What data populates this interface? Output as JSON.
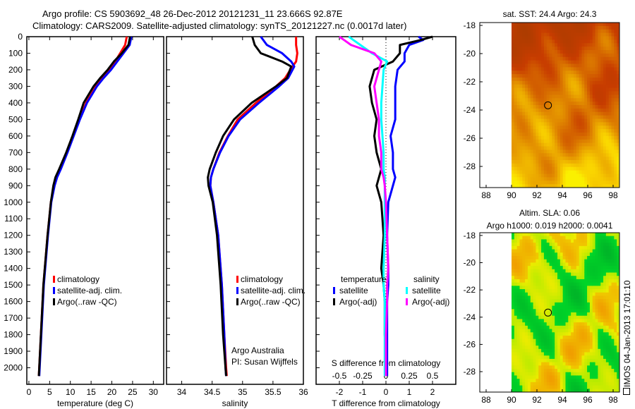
{
  "title": {
    "line1": "Argo profile: CS 5903692_48 26-Dec-2012 20121231_11 23.666S 92.87E",
    "line2": "Climatology: CARS2009. Satellite-adjusted climatology: synTS_20121227.nc (0.0017d later)"
  },
  "footer": {
    "credit1": "Argo Australia",
    "credit2": "PI: Susan Wijffels",
    "timestamp": "IMOS 04-Jan-2013 17:01:10"
  },
  "colors": {
    "climatology": "#ff0000",
    "satellite": "#0000ff",
    "argo": "#000000",
    "sal_satellite": "#00ffff",
    "sal_argo": "#ff00ff"
  },
  "chart_data": [
    {
      "type": "line",
      "name": "temperature",
      "xlabel": "temperature (deg C)",
      "xlim": [
        -0.5,
        32.5
      ],
      "ylim": [
        0,
        2100
      ],
      "y_inverted": true,
      "xticks": [
        0,
        5,
        10,
        15,
        20,
        25,
        30
      ],
      "yticks": [
        0,
        100,
        200,
        300,
        400,
        500,
        600,
        700,
        800,
        900,
        1000,
        1100,
        1200,
        1300,
        1400,
        1500,
        1600,
        1700,
        1800,
        1900,
        2000
      ],
      "legend": [
        "climatology",
        "satellite-adj. clim.",
        "Argo(..raw -QC)"
      ],
      "depth": [
        0,
        50,
        100,
        150,
        200,
        250,
        300,
        400,
        500,
        600,
        700,
        800,
        850,
        900,
        1000,
        1200,
        1500,
        1800,
        2000,
        2050
      ],
      "series": [
        {
          "name": "climatology",
          "color": "#ff0000",
          "values": [
            23.6,
            23.2,
            22.0,
            20.8,
            19.5,
            17.8,
            16.2,
            13.8,
            12.2,
            10.7,
            9.2,
            7.6,
            6.7,
            6.1,
            5.3,
            4.5,
            3.5,
            2.9,
            2.5,
            2.4
          ]
        },
        {
          "name": "satellite-adj. clim.",
          "color": "#0000ff",
          "values": [
            24.7,
            24.3,
            22.8,
            21.3,
            19.8,
            18.0,
            16.4,
            14.0,
            12.3,
            10.8,
            9.3,
            7.7,
            6.8,
            6.2,
            5.4,
            4.6,
            3.6,
            3.0,
            2.6,
            2.5
          ]
        },
        {
          "name": "Argo(..raw -QC)",
          "color": "#000000",
          "values": [
            24.4,
            24.0,
            22.4,
            20.5,
            19.0,
            17.2,
            15.6,
            13.2,
            11.9,
            10.5,
            9.0,
            7.3,
            6.4,
            5.9,
            5.3,
            4.5,
            3.5,
            2.9,
            2.5,
            2.4
          ]
        }
      ]
    },
    {
      "type": "line",
      "name": "salinity",
      "xlabel": "salinity",
      "xlim": [
        33.75,
        36.0
      ],
      "ylim": [
        0,
        2100
      ],
      "y_inverted": true,
      "xticks": [
        34,
        34.5,
        35,
        35.5,
        36
      ],
      "legend": [
        "climatology",
        "satellite-adj. clim.",
        "Argo(..raw -QC)"
      ],
      "depth": [
        0,
        50,
        100,
        150,
        180,
        250,
        300,
        400,
        500,
        600,
        700,
        800,
        850,
        900,
        1000,
        1200,
        1500,
        1800,
        2000,
        2050
      ],
      "series": [
        {
          "name": "climatology",
          "color": "#ff0000",
          "values": [
            35.88,
            35.88,
            35.9,
            35.88,
            35.82,
            35.7,
            35.55,
            35.22,
            34.92,
            34.76,
            34.62,
            34.52,
            34.48,
            34.47,
            34.52,
            34.6,
            34.66,
            34.7,
            34.73,
            34.74
          ]
        },
        {
          "name": "satellite-adj. clim.",
          "color": "#0000ff",
          "values": [
            35.3,
            35.4,
            35.65,
            35.8,
            35.85,
            35.75,
            35.6,
            35.27,
            34.96,
            34.77,
            34.63,
            34.52,
            34.48,
            34.47,
            34.52,
            34.6,
            34.66,
            34.7,
            34.72,
            34.73
          ]
        },
        {
          "name": "Argo(..raw -QC)",
          "color": "#000000",
          "values": [
            35.16,
            35.2,
            35.3,
            35.65,
            35.8,
            35.73,
            35.55,
            35.15,
            34.86,
            34.68,
            34.56,
            34.46,
            34.43,
            34.44,
            34.51,
            34.58,
            34.64,
            34.68,
            34.72,
            34.73
          ]
        }
      ]
    },
    {
      "type": "line",
      "name": "difference",
      "xlabel": "T difference from climatology",
      "x2label": "S difference from climatology",
      "xlim": [
        -3,
        3
      ],
      "ylim": [
        0,
        2100
      ],
      "y_inverted": true,
      "xticks": [
        -2,
        -1,
        0,
        1,
        2
      ],
      "x2ticks": [
        "-0.5",
        "-0.25",
        "0",
        "0.25",
        "0.5"
      ],
      "legend_temperature": {
        "title": "temperature",
        "items": [
          "satellite",
          "Argo(-adj)"
        ]
      },
      "legend_salinity": {
        "title": "salinity",
        "items": [
          "satellite",
          "Argo(-adj)"
        ]
      },
      "depth": [
        0,
        20,
        50,
        100,
        150,
        200,
        300,
        400,
        500,
        600,
        700,
        800,
        850,
        900,
        1000,
        1200,
        1400,
        1500,
        1600,
        1800,
        2000,
        2050
      ],
      "series": [
        {
          "name": "T satellite",
          "color": "#0000ff",
          "values": [
            1.4,
            1.6,
            1.0,
            0.8,
            0.8,
            0.5,
            0.4,
            0.4,
            0.4,
            0.2,
            0.3,
            0.3,
            0.4,
            0.3,
            0.1,
            0.05,
            0.1,
            0.1,
            0.05,
            0.05,
            0.05,
            0.05
          ]
        },
        {
          "name": "T Argo(-adj)",
          "color": "#000000",
          "values": [
            2.0,
            1.5,
            0.6,
            0.6,
            0.3,
            -0.5,
            -0.7,
            -0.6,
            -0.4,
            -0.5,
            -0.4,
            -0.2,
            -0.3,
            -0.4,
            -0.2,
            -0.1,
            -0.2,
            -0.1,
            -0.05,
            -0.05,
            0,
            0
          ]
        },
        {
          "name": "S satellite",
          "color": "#00ffff",
          "values": [
            -1.6,
            -1.4,
            -1.1,
            -0.6,
            0.05,
            -0.1,
            -0.15,
            -0.2,
            -0.2,
            -0.15,
            -0.1,
            -0.1,
            -0.05,
            -0.05,
            -0.05,
            -0.05,
            -0.1,
            -0.1,
            -0.05,
            -0.05,
            -0.05,
            -0.05
          ]
        },
        {
          "name": "S Argo(-adj)",
          "color": "#ff00ff",
          "values": [
            -2.0,
            -1.8,
            -1.5,
            -0.5,
            -0.2,
            -0.3,
            -0.5,
            -0.4,
            -0.3,
            -0.3,
            -0.2,
            -0.2,
            -0.1,
            -0.05,
            0,
            0.05,
            0.1,
            0.05,
            0.05,
            0,
            0,
            0
          ]
        }
      ]
    },
    {
      "type": "heatmap",
      "name": "sst-map",
      "title": "sat. SST: 24.4  Argo: 24.3",
      "xlim": [
        87.5,
        98.5
      ],
      "ylim": [
        -29.5,
        -17.8
      ],
      "xticks": [
        88,
        90,
        92,
        94,
        96,
        98
      ],
      "yticks": [
        -18,
        -20,
        -22,
        -24,
        -26,
        -28
      ],
      "data_lon_min": 90,
      "marker": [
        92.87,
        -23.666
      ]
    },
    {
      "type": "heatmap",
      "name": "sla-map",
      "title": "Altim. SLA: 0.06",
      "subtitle": "Argo h1000: 0.019 h2000: 0.0041",
      "xlim": [
        87.5,
        98.5
      ],
      "ylim": [
        -29.5,
        -17.8
      ],
      "xticks": [
        88,
        90,
        92,
        94,
        96,
        98
      ],
      "yticks": [
        -18,
        -20,
        -22,
        -24,
        -26,
        -28
      ],
      "data_lon_min": 90,
      "marker": [
        92.87,
        -23.666
      ]
    }
  ]
}
